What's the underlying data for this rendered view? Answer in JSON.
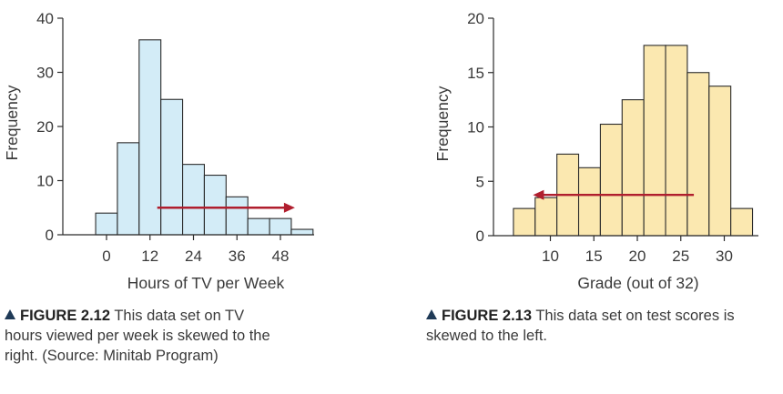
{
  "chart_data": [
    {
      "type": "bar",
      "subtype": "histogram",
      "xlabel": "Hours of TV per Week",
      "ylabel": "Frequency",
      "ylim": [
        0,
        40
      ],
      "yticks": [
        0,
        10,
        20,
        30,
        40
      ],
      "xticks": [
        0,
        12,
        24,
        36,
        48
      ],
      "bin_width": 6,
      "bins": [
        {
          "x0": -3,
          "x1": 3,
          "value": 4
        },
        {
          "x0": 3,
          "x1": 9,
          "value": 17
        },
        {
          "x0": 9,
          "x1": 15,
          "value": 36
        },
        {
          "x0": 15,
          "x1": 21,
          "value": 25
        },
        {
          "x0": 21,
          "x1": 27,
          "value": 13
        },
        {
          "x0": 27,
          "x1": 33,
          "value": 11
        },
        {
          "x0": 33,
          "x1": 39,
          "value": 7
        },
        {
          "x0": 39,
          "x1": 45,
          "value": 3
        },
        {
          "x0": 45,
          "x1": 51,
          "value": 3
        },
        {
          "x0": 51,
          "x1": 57,
          "value": 1
        }
      ],
      "bar_color": "#d3ecf7",
      "arrow": {
        "direction": "right",
        "from_x": 14,
        "to_x": 52,
        "y": 5
      },
      "arrow_color": "#b01e2e",
      "grid": false
    },
    {
      "type": "bar",
      "subtype": "histogram",
      "xlabel": "Grade (out of 32)",
      "ylabel": "Frequency",
      "ylim": [
        0,
        20
      ],
      "yticks": [
        0,
        5,
        10,
        15,
        20
      ],
      "xticks": [
        10,
        15,
        20,
        25,
        30
      ],
      "bin_width": 2.5,
      "bins": [
        {
          "x0": 5.75,
          "x1": 8.25,
          "value": 2.5
        },
        {
          "x0": 8.25,
          "x1": 10.75,
          "value": 3.5
        },
        {
          "x0": 10.75,
          "x1": 13.25,
          "value": 7.5
        },
        {
          "x0": 13.25,
          "x1": 15.75,
          "value": 6.25
        },
        {
          "x0": 15.75,
          "x1": 18.25,
          "value": 10.25
        },
        {
          "x0": 18.25,
          "x1": 20.75,
          "value": 12.5
        },
        {
          "x0": 20.75,
          "x1": 23.25,
          "value": 17.5
        },
        {
          "x0": 23.25,
          "x1": 25.75,
          "value": 17.5
        },
        {
          "x0": 25.75,
          "x1": 28.25,
          "value": 15
        },
        {
          "x0": 28.25,
          "x1": 30.75,
          "value": 13.75
        },
        {
          "x0": 30.75,
          "x1": 33.25,
          "value": 2.5
        }
      ],
      "bar_color": "#fbe8b0",
      "arrow": {
        "direction": "left",
        "from_x": 26.5,
        "to_x": 8,
        "y": 3.75
      },
      "arrow_color": "#b01e2e",
      "grid": false
    }
  ],
  "captions": [
    {
      "lead": "FIGURE 2.12",
      "text": "This data set on TV hours viewed per week is skewed to the right. (Source: Minitab Program)"
    },
    {
      "lead": "FIGURE 2.13",
      "text": "This data set on test scores is skewed to the left."
    }
  ]
}
